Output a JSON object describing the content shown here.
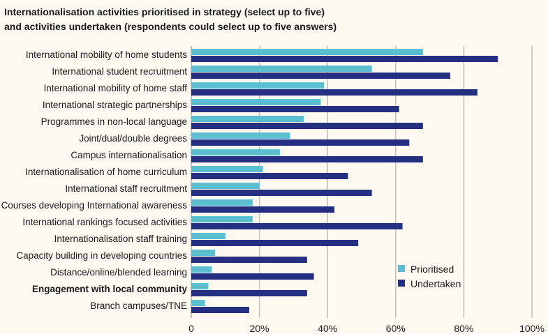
{
  "chart_data": {
    "type": "bar",
    "orientation": "horizontal",
    "title": [
      "Internationalisation activities prioritised in strategy (select up to five)",
      "and activities undertaken (respondents could select up to five answers)"
    ],
    "categories": [
      "International mobility of home students",
      "International student recruitment",
      "International mobility of home staff",
      "International strategic partnerships",
      "Programmes in non-local language",
      "Joint/dual/double degrees",
      "Campus internationalisation",
      "Internationalisation of home curriculum",
      "International staff recruitment",
      "Courses developing International awareness",
      "International rankings focused activities",
      "Internationalisation staff training",
      "Capacity building in developing countries",
      "Distance/online/blended learning",
      "Engagement with local community",
      "Branch campuses/TNE"
    ],
    "bold_categories": [
      "Engagement with local community"
    ],
    "series": [
      {
        "name": "Prioritised",
        "color": "#5bbfd1",
        "values": [
          68,
          53,
          39,
          38,
          33,
          29,
          26,
          21,
          20,
          18,
          18,
          10,
          7,
          6,
          5,
          4
        ]
      },
      {
        "name": "Undertaken",
        "color": "#24307f",
        "values": [
          90,
          76,
          84,
          61,
          68,
          64,
          68,
          46,
          53,
          42,
          62,
          49,
          34,
          36,
          34,
          17
        ]
      }
    ],
    "xlim": [
      0,
      100
    ],
    "xticks": [
      0,
      20,
      40,
      60,
      80,
      100
    ],
    "xtick_labels": [
      "0",
      "20%",
      "40%",
      "60%",
      "80%",
      "100%"
    ],
    "grid": true,
    "legend": "bottom-right"
  }
}
